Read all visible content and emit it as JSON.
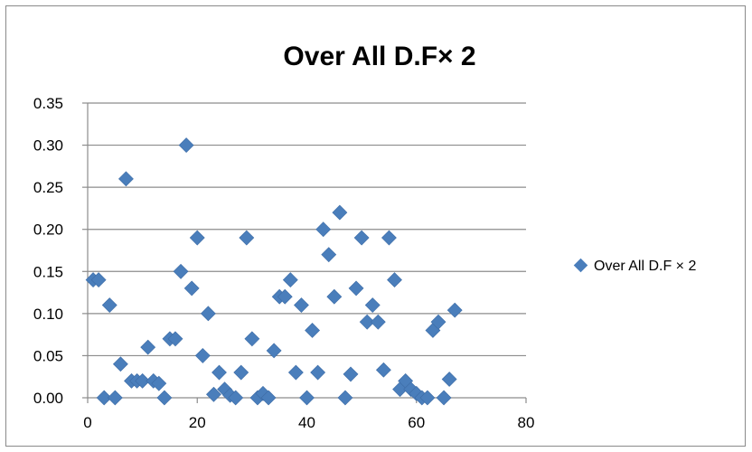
{
  "chart_data": {
    "type": "scatter",
    "title": "Over All D.F× 2",
    "xlabel": "",
    "ylabel": "",
    "xlim": [
      0,
      80
    ],
    "ylim": [
      0,
      0.35
    ],
    "xticks": [
      "0",
      "20",
      "40",
      "60",
      "80"
    ],
    "yticks": [
      "0.00",
      "0.05",
      "0.10",
      "0.15",
      "0.20",
      "0.25",
      "0.30",
      "0.35"
    ],
    "grid": "horizontal",
    "legend_position": "right",
    "marker_color": "#4a7ebb",
    "series": [
      {
        "name": "Over All D.F × 2",
        "points": [
          [
            1,
            0.14
          ],
          [
            2,
            0.14
          ],
          [
            3,
            0.0
          ],
          [
            4,
            0.11
          ],
          [
            5,
            0.0
          ],
          [
            6,
            0.04
          ],
          [
            7,
            0.26
          ],
          [
            8,
            0.02
          ],
          [
            9,
            0.02
          ],
          [
            10,
            0.02
          ],
          [
            11,
            0.06
          ],
          [
            12,
            0.02
          ],
          [
            13,
            0.017
          ],
          [
            14,
            0.0
          ],
          [
            15,
            0.07
          ],
          [
            16,
            0.07
          ],
          [
            17,
            0.15
          ],
          [
            18,
            0.3
          ],
          [
            19,
            0.13
          ],
          [
            20,
            0.19
          ],
          [
            21,
            0.05
          ],
          [
            22,
            0.1
          ],
          [
            23,
            0.004
          ],
          [
            24,
            0.03
          ],
          [
            25,
            0.01
          ],
          [
            26,
            0.003
          ],
          [
            27,
            0.0
          ],
          [
            28,
            0.03
          ],
          [
            29,
            0.19
          ],
          [
            30,
            0.07
          ],
          [
            31,
            0.0
          ],
          [
            32,
            0.005
          ],
          [
            33,
            0.0
          ],
          [
            34,
            0.056
          ],
          [
            35,
            0.12
          ],
          [
            36,
            0.12
          ],
          [
            37,
            0.14
          ],
          [
            38,
            0.03
          ],
          [
            39,
            0.11
          ],
          [
            40,
            0.0
          ],
          [
            41,
            0.08
          ],
          [
            42,
            0.03
          ],
          [
            43,
            0.2
          ],
          [
            44,
            0.17
          ],
          [
            45,
            0.12
          ],
          [
            46,
            0.22
          ],
          [
            47,
            0.0
          ],
          [
            48,
            0.028
          ],
          [
            49,
            0.13
          ],
          [
            50,
            0.19
          ],
          [
            51,
            0.09
          ],
          [
            52,
            0.11
          ],
          [
            53,
            0.09
          ],
          [
            54,
            0.033
          ],
          [
            55,
            0.19
          ],
          [
            56,
            0.14
          ],
          [
            57,
            0.01
          ],
          [
            58,
            0.02
          ],
          [
            59,
            0.01
          ],
          [
            60,
            0.005
          ],
          [
            61,
            0.0
          ],
          [
            62,
            0.0
          ],
          [
            63,
            0.08
          ],
          [
            64,
            0.09
          ],
          [
            65,
            0.0
          ],
          [
            66,
            0.022
          ],
          [
            67,
            0.104
          ]
        ]
      }
    ]
  }
}
